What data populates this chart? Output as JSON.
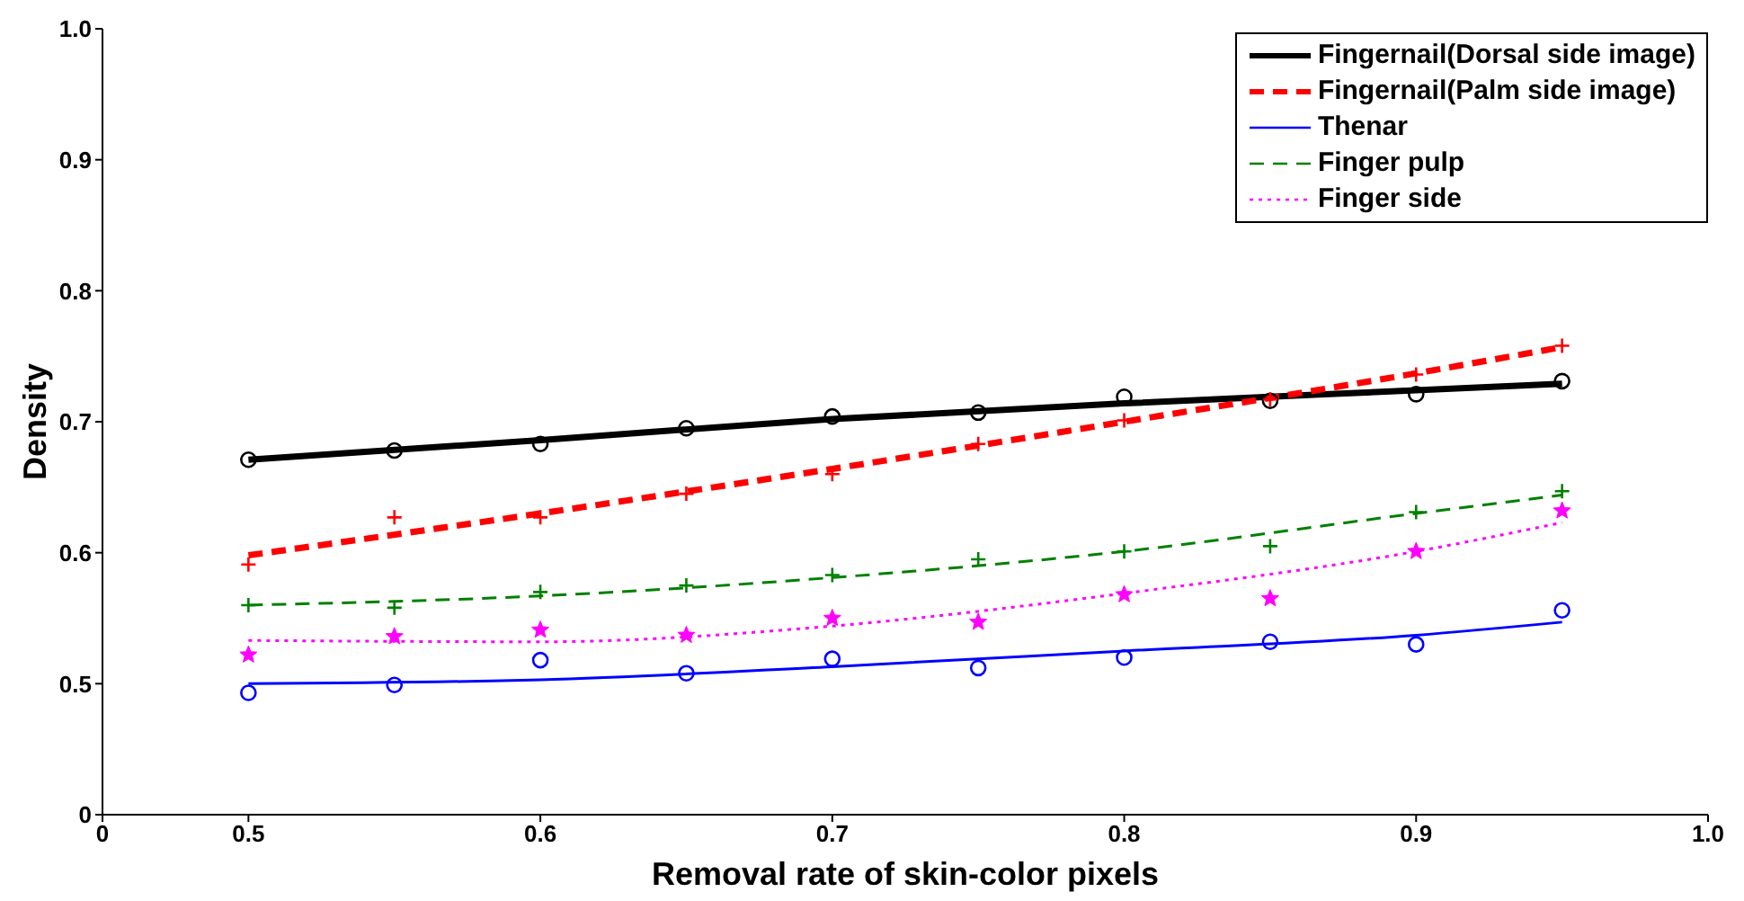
{
  "chart_data": {
    "type": "scatter",
    "xlabel": "Removal rate of skin-color pixels",
    "ylabel": "Density",
    "x": [
      0.5,
      0.55,
      0.6,
      0.65,
      0.7,
      0.75,
      0.8,
      0.85,
      0.9,
      0.95
    ],
    "series": [
      {
        "color": "#000000",
        "marker": "circle",
        "values": [
          0.671,
          0.678,
          0.683,
          0.695,
          0.704,
          0.707,
          0.719,
          0.716,
          0.721,
          0.731
        ]
      },
      {
        "color": "#ff0000",
        "marker": "cross",
        "values": [
          0.591,
          0.627,
          0.627,
          0.645,
          0.66,
          0.683,
          0.701,
          0.717,
          0.736,
          0.758
        ]
      },
      {
        "color": "#0000ff",
        "marker": "circle",
        "values": [
          0.493,
          0.499,
          0.518,
          0.508,
          0.519,
          0.512,
          0.52,
          0.532,
          0.53,
          0.556
        ]
      },
      {
        "color": "#008000",
        "marker": "cross",
        "values": [
          0.56,
          0.558,
          0.57,
          0.575,
          0.583,
          0.595,
          0.601,
          0.605,
          0.631,
          0.647
        ]
      },
      {
        "color": "#ff00ff",
        "marker": "star",
        "values": [
          0.522,
          0.536,
          0.541,
          0.537,
          0.55,
          0.547,
          0.568,
          0.565,
          0.601,
          0.632
        ]
      },
      {
        "type": "line",
        "name": "Fingernail(Dorsal side image)",
        "color": "#000000",
        "line_style": "solid",
        "x": [
          0.5,
          0.6,
          0.7,
          0.8,
          0.9,
          0.95
        ],
        "values": [
          0.671,
          0.686,
          0.702,
          0.714,
          0.724,
          0.729
        ]
      },
      {
        "type": "line",
        "name": "Fingernail(Palm side image)",
        "color": "#ff0000",
        "line_style": "dashed",
        "x": [
          0.5,
          0.6,
          0.7,
          0.8,
          0.9,
          0.95
        ],
        "values": [
          0.598,
          0.63,
          0.664,
          0.7,
          0.737,
          0.757
        ]
      },
      {
        "type": "line",
        "name": "Thenar",
        "color": "#0000ff",
        "line_style": "solid",
        "x": [
          0.5,
          0.6,
          0.7,
          0.8,
          0.9,
          0.95
        ],
        "values": [
          0.5,
          0.503,
          0.513,
          0.525,
          0.537,
          0.547
        ]
      },
      {
        "type": "line",
        "name": "Finger pulp",
        "color": "#008000",
        "line_style": "dashed",
        "x": [
          0.5,
          0.6,
          0.7,
          0.8,
          0.9,
          0.95
        ],
        "values": [
          0.56,
          0.567,
          0.581,
          0.601,
          0.63,
          0.644
        ]
      },
      {
        "type": "line",
        "name": "Finger side",
        "color": "#ff00ff",
        "line_style": "dotted",
        "x": [
          0.5,
          0.6,
          0.7,
          0.8,
          0.9,
          0.95
        ],
        "values": [
          0.533,
          0.532,
          0.544,
          0.569,
          0.601,
          0.623
        ]
      }
    ],
    "xlim": [
      0.45,
      1.0
    ],
    "xticks": [
      {
        "value": 0.45,
        "label": "0"
      },
      0.5,
      0.6,
      0.7,
      0.8,
      0.9,
      {
        "value": 1,
        "label": "1.0"
      }
    ],
    "ylim": [
      0.4,
      1.0
    ],
    "yticks": [
      {
        "value": 0.4,
        "label": "0"
      },
      0.5,
      0.6,
      0.7,
      0.8,
      0.9,
      {
        "value": 1,
        "label": "1.0"
      }
    ],
    "grid": false,
    "legend": "top right"
  }
}
